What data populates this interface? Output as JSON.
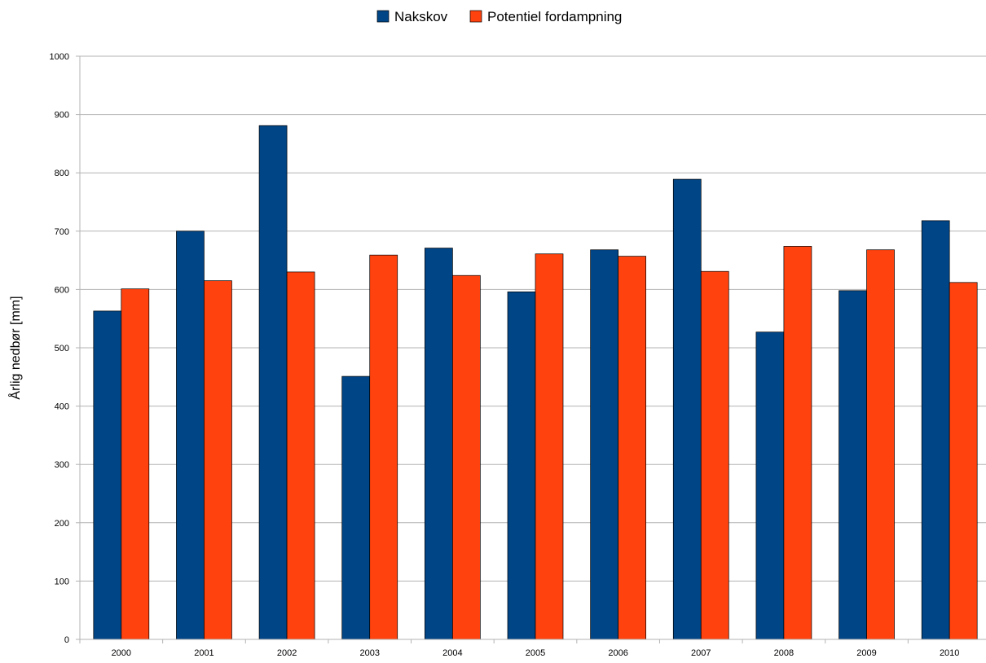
{
  "chart_data": {
    "type": "bar",
    "categories": [
      "2000",
      "2001",
      "2002",
      "2003",
      "2004",
      "2005",
      "2006",
      "2007",
      "2008",
      "2009",
      "2010"
    ],
    "series": [
      {
        "name": "Nakskov",
        "color": "#004586",
        "values": [
          563,
          700,
          881,
          451,
          671,
          596,
          668,
          789,
          527,
          598,
          718
        ]
      },
      {
        "name": "Potentiel fordampning",
        "color": "#ff420e",
        "values": [
          601,
          615,
          630,
          659,
          624,
          661,
          657,
          631,
          674,
          668,
          612
        ]
      }
    ],
    "ylabel": "Årlig nedbør [mm]",
    "ylim": [
      0,
      1000
    ],
    "yticks": [
      "0",
      "100",
      "200",
      "300",
      "400",
      "500",
      "600",
      "700",
      "800",
      "900",
      "1000"
    ],
    "grid": true,
    "legend_position": "top-center"
  }
}
